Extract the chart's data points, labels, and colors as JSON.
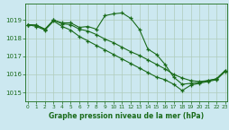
{
  "title": "Graphe pression niveau de la mer (hPa)",
  "bg_color": "#cce8f0",
  "grid_color": "#b0ccbb",
  "line_color": "#1a6b1a",
  "x_ticks": [
    0,
    1,
    2,
    3,
    4,
    5,
    6,
    7,
    8,
    9,
    10,
    11,
    12,
    13,
    14,
    15,
    16,
    17,
    18,
    19,
    20,
    21,
    22,
    23
  ],
  "y_ticks": [
    1015,
    1016,
    1017,
    1018,
    1019
  ],
  "ylim": [
    1014.5,
    1019.9
  ],
  "xlim": [
    -0.3,
    23.3
  ],
  "line1": [
    1018.75,
    1018.72,
    1018.5,
    1019.0,
    1018.85,
    1018.85,
    1018.6,
    1018.65,
    1018.5,
    1019.25,
    1019.35,
    1019.4,
    1019.1,
    1018.5,
    1017.4,
    1017.1,
    1016.55,
    1015.85,
    1015.45,
    1015.5,
    1015.55,
    1015.65,
    1015.75,
    1016.2
  ],
  "line2": [
    1018.75,
    1018.72,
    1018.5,
    1019.0,
    1018.8,
    1018.75,
    1018.5,
    1018.4,
    1018.2,
    1017.95,
    1017.75,
    1017.5,
    1017.25,
    1017.05,
    1016.8,
    1016.55,
    1016.3,
    1016.0,
    1015.8,
    1015.65,
    1015.6,
    1015.65,
    1015.75,
    1016.2
  ],
  "line3": [
    1018.75,
    1018.65,
    1018.45,
    1018.95,
    1018.65,
    1018.45,
    1018.1,
    1017.85,
    1017.6,
    1017.35,
    1017.1,
    1016.85,
    1016.6,
    1016.35,
    1016.1,
    1015.85,
    1015.7,
    1015.45,
    1015.1,
    1015.4,
    1015.5,
    1015.6,
    1015.7,
    1016.15
  ]
}
